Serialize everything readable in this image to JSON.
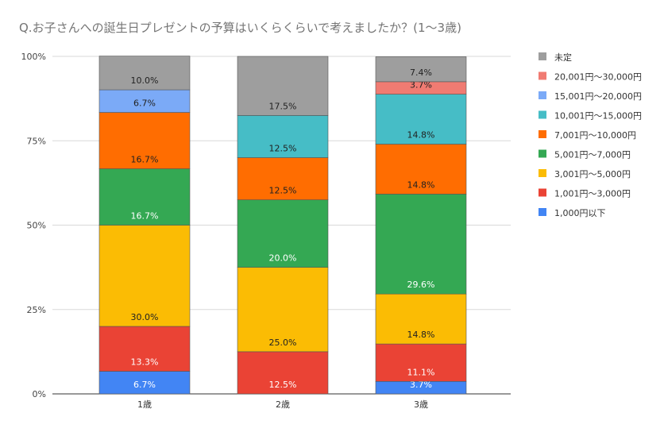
{
  "chart_data": {
    "type": "stacked-bar-100",
    "title": "Q.お子さんへの誕生日プレゼントの予算はいくらくらいで考えましたか？(1〜3歳)",
    "xlabel": "",
    "ylabel": "",
    "ylim": [
      0,
      100
    ],
    "yticks": [
      "0%",
      "25%",
      "50%",
      "75%",
      "100%"
    ],
    "grid": true,
    "legend_position": "right",
    "categories": [
      "1歳",
      "2歳",
      "3歳"
    ],
    "series": [
      {
        "name": "1,000円以下",
        "color": "#4285f4",
        "label_color": "#ffffff",
        "values": [
          6.7,
          null,
          3.7
        ]
      },
      {
        "name": "1,001円〜3,000円",
        "color": "#ea4335",
        "label_color": "#ffffff",
        "values": [
          13.3,
          12.5,
          11.1
        ]
      },
      {
        "name": "3,001円〜5,000円",
        "color": "#fbbc04",
        "label_color": "#222222",
        "values": [
          30.0,
          25.0,
          14.8
        ]
      },
      {
        "name": "5,001円〜7,000円",
        "color": "#34a853",
        "label_color": "#ffffff",
        "values": [
          16.7,
          20.0,
          29.6
        ]
      },
      {
        "name": "7,001円〜10,000円",
        "color": "#ff6d01",
        "label_color": "#222222",
        "values": [
          16.7,
          12.5,
          14.8
        ]
      },
      {
        "name": "10,001円〜15,000円",
        "color": "#46bdc6",
        "label_color": "#222222",
        "values": [
          null,
          12.5,
          14.8
        ]
      },
      {
        "name": "15,001円〜20,000円",
        "color": "#7baaf7",
        "label_color": "#222222",
        "values": [
          6.7,
          null,
          null
        ]
      },
      {
        "name": "20,001円〜30,000円",
        "color": "#f07b72",
        "label_color": "#222222",
        "values": [
          null,
          null,
          3.7
        ]
      },
      {
        "name": "未定",
        "color": "#9e9e9e",
        "label_color": "#222222",
        "values": [
          10.0,
          17.5,
          7.4
        ]
      }
    ]
  }
}
